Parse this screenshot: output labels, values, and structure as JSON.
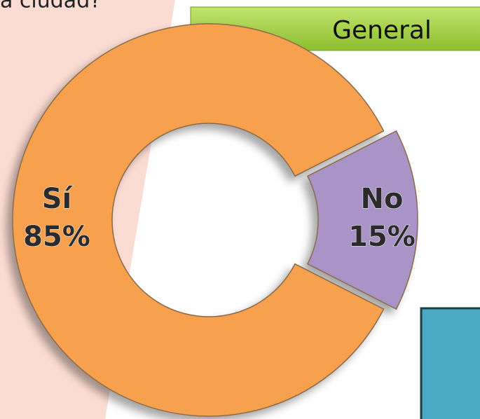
{
  "chart_data": {
    "type": "donut",
    "title": "a ciudad?",
    "header": "General",
    "categories": [
      "Sí",
      "No"
    ],
    "values": [
      85,
      15
    ],
    "value_labels": [
      "85%",
      "15%"
    ],
    "colors": [
      "#f7a04e",
      "#a993c7"
    ]
  }
}
